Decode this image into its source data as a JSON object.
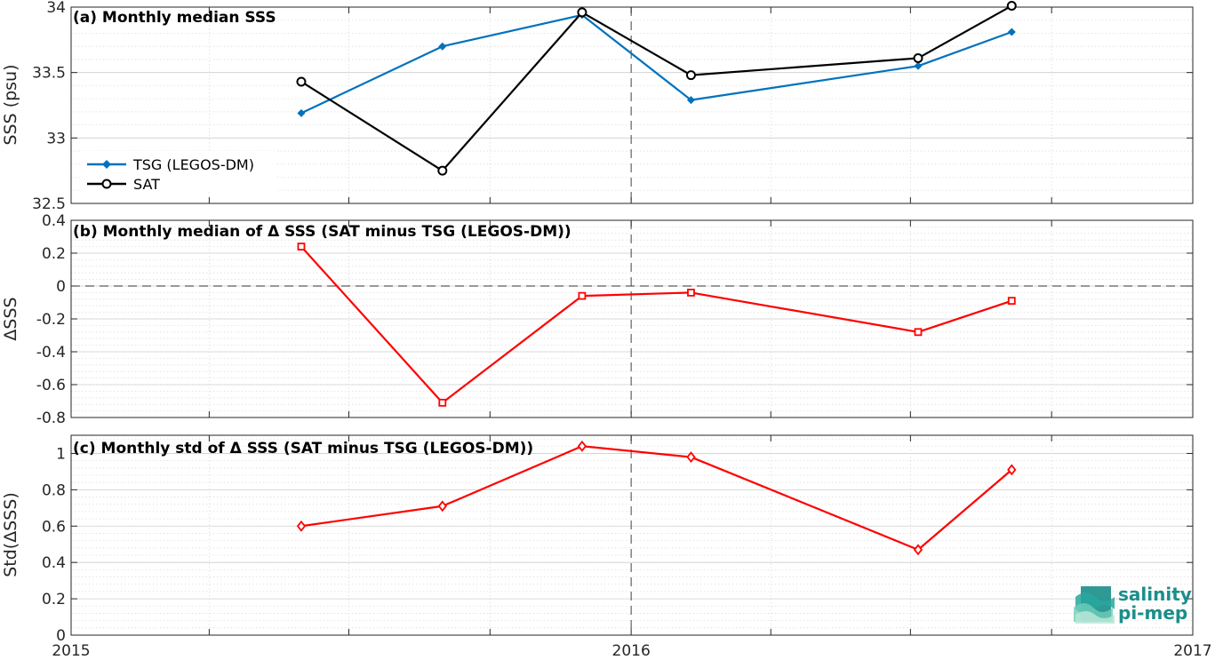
{
  "chart_data": [
    {
      "type": "line",
      "title": "(a) Monthly median SSS",
      "ylabel": "SSS (psu)",
      "ylim": [
        32.5,
        34
      ],
      "yticks": [
        32.5,
        33,
        33.5,
        34
      ],
      "ytick_labels": [
        "32.5",
        "33",
        "33.5",
        "34"
      ],
      "xlim": [
        "2015-01-01",
        "2017-01-01"
      ],
      "grid": true,
      "legend_position": "bottom-left",
      "series": [
        {
          "name": "TSG (LEGOS-DM)",
          "color": "#0072bd",
          "marker": "diamond-filled",
          "x": [
            "2015-05-31",
            "2015-08-31",
            "2015-11-30",
            "2016-02-09",
            "2016-07-06",
            "2016-09-05"
          ],
          "values": [
            33.19,
            33.7,
            33.94,
            33.29,
            33.55,
            33.81
          ]
        },
        {
          "name": "SAT",
          "color": "#000000",
          "marker": "circle-open",
          "x": [
            "2015-05-31",
            "2015-08-31",
            "2015-11-30",
            "2016-02-09",
            "2016-07-06",
            "2016-09-05"
          ],
          "values": [
            33.43,
            32.75,
            33.96,
            33.48,
            33.61,
            34.01
          ]
        }
      ]
    },
    {
      "type": "line",
      "title": "(b) Monthly median of Δ SSS (SAT minus TSG (LEGOS-DM))",
      "ylabel": "ΔSSS",
      "ylim": [
        -0.8,
        0.4
      ],
      "yticks": [
        -0.8,
        -0.6,
        -0.4,
        -0.2,
        0,
        0.2,
        0.4
      ],
      "ytick_labels": [
        "-0.8",
        "-0.6",
        "-0.4",
        "-0.2",
        "0",
        "0.2",
        "0.4"
      ],
      "xlim": [
        "2015-01-01",
        "2017-01-01"
      ],
      "grid": true,
      "zero_line": true,
      "series": [
        {
          "color": "#ff0000",
          "marker": "square-open",
          "x": [
            "2015-05-31",
            "2015-08-31",
            "2015-11-30",
            "2016-02-09",
            "2016-07-06",
            "2016-09-05"
          ],
          "values": [
            0.24,
            -0.71,
            -0.06,
            -0.04,
            -0.28,
            -0.09
          ]
        }
      ]
    },
    {
      "type": "line",
      "title": "(c) Monthly std of Δ SSS (SAT minus TSG (LEGOS-DM))",
      "ylabel": "Std(ΔSSS)",
      "ylim": [
        0,
        1.1
      ],
      "yticks": [
        0,
        0.2,
        0.4,
        0.6,
        0.8,
        1
      ],
      "ytick_labels": [
        "0",
        "0.2",
        "0.4",
        "0.6",
        "0.8",
        "1"
      ],
      "xlim": [
        "2015-01-01",
        "2017-01-01"
      ],
      "xticks": [
        "2015-01-01",
        "2016-01-01",
        "2017-01-01"
      ],
      "xtick_labels": [
        "2015",
        "2016",
        "2017"
      ],
      "grid": true,
      "series": [
        {
          "color": "#ff0000",
          "marker": "diamond-open",
          "x": [
            "2015-05-31",
            "2015-08-31",
            "2015-11-30",
            "2016-02-09",
            "2016-07-06",
            "2016-09-05"
          ],
          "values": [
            0.6,
            0.71,
            1.04,
            0.98,
            0.47,
            0.91
          ]
        }
      ]
    }
  ],
  "logo": {
    "line1": "salinity",
    "line2": "pi-mep",
    "icon": "wave-stack-icon",
    "color": "#1a8e8a"
  }
}
